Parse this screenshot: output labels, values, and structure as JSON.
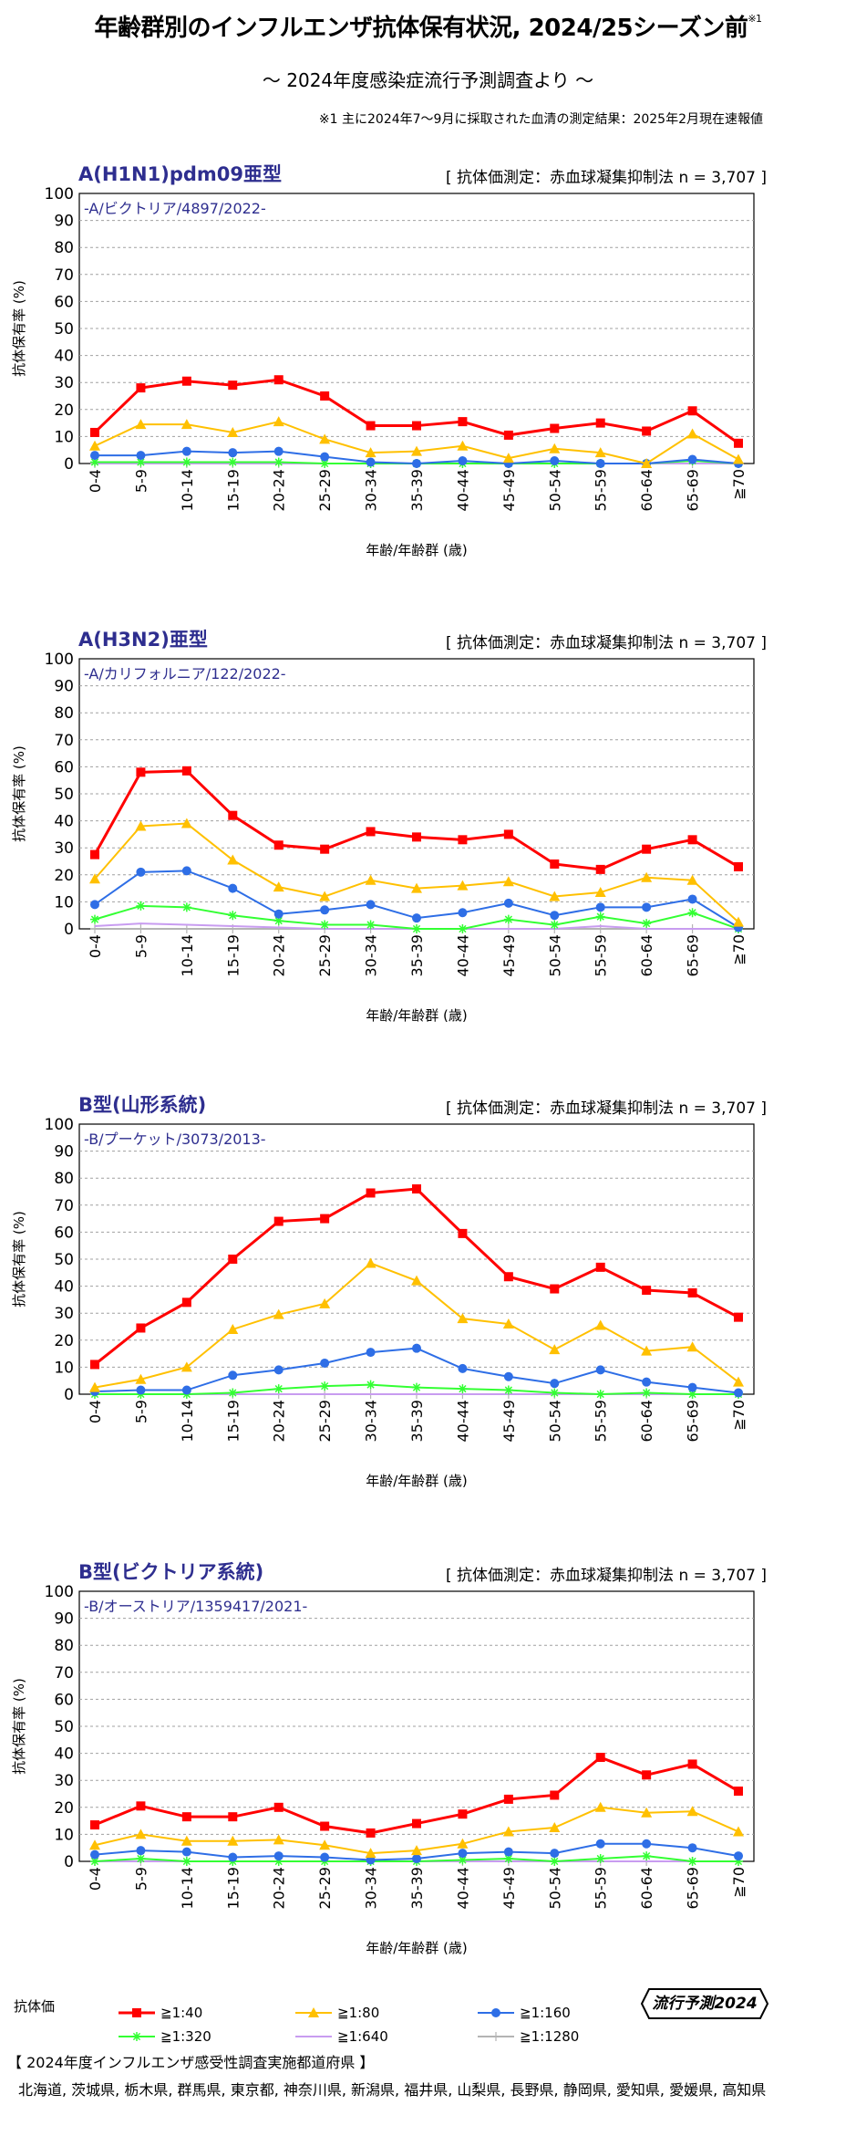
{
  "header": {
    "title": "年齢群別のインフルエンザ抗体保有状況, 2024/25シーズン前",
    "title_note": "※1",
    "subtitle": "～ 2024年度感染症流行予測調査より ～",
    "footnote": "※1  主に2024年7～9月に採取された血清の測定結果：2025年2月現在速報値"
  },
  "series_styles": [
    {
      "name": "≧1:40",
      "color": "#ff0000",
      "marker": "square"
    },
    {
      "name": "≧1:80",
      "color": "#ffc000",
      "marker": "triangle"
    },
    {
      "name": "≧1:160",
      "color": "#2e6ee6",
      "marker": "circle"
    },
    {
      "name": "≧1:320",
      "color": "#33ff33",
      "marker": "star"
    },
    {
      "name": "≧1:640",
      "color": "#c89cf0",
      "marker": "none"
    },
    {
      "name": "≧1:1280",
      "color": "#b4b4b4",
      "marker": "plus"
    }
  ],
  "chart_data": [
    {
      "type": "line",
      "title": "A(H1N1)pdm09亜型",
      "method": "[ 抗体価測定：赤血球凝集抑制法  n = 3,707 ]",
      "strain": "-A/ビクトリア/4897/2022-",
      "xlabel": "年齢/年齢群 (歳)",
      "ylabel": "抗体保有率 (%)",
      "ylim": [
        0,
        100
      ],
      "yticks": [
        0,
        10,
        20,
        30,
        40,
        50,
        60,
        70,
        80,
        90,
        100
      ],
      "categories": [
        "0-4",
        "5-9",
        "10-14",
        "15-19",
        "20-24",
        "25-29",
        "30-34",
        "35-39",
        "40-44",
        "45-49",
        "50-54",
        "55-59",
        "60-64",
        "65-69",
        "≧70"
      ],
      "series": [
        {
          "name": "≧1:40",
          "values": [
            11.5,
            28,
            30.5,
            29,
            31,
            25,
            14,
            14,
            15.5,
            10.5,
            13,
            15,
            12,
            19.5,
            7.5
          ]
        },
        {
          "name": "≧1:80",
          "values": [
            6.5,
            14.5,
            14.5,
            11.5,
            15.5,
            9,
            4,
            4.5,
            6.5,
            2,
            5.5,
            4,
            0,
            11,
            1.5
          ]
        },
        {
          "name": "≧1:160",
          "values": [
            3,
            3,
            4.5,
            4,
            4.5,
            2.5,
            0.5,
            0,
            1,
            0,
            1,
            0,
            0,
            1.5,
            0
          ]
        },
        {
          "name": "≧1:320",
          "values": [
            0.5,
            0.5,
            0.5,
            0.5,
            0.5,
            0,
            0,
            0,
            0,
            0,
            0,
            0,
            0,
            1,
            0
          ]
        },
        {
          "name": "≧1:640",
          "values": [
            0,
            0,
            0,
            0,
            0,
            0,
            0,
            0,
            0,
            0,
            0,
            0,
            0,
            0,
            0
          ]
        },
        {
          "name": "≧1:1280",
          "values": [
            0,
            0,
            0,
            0,
            0,
            0,
            0,
            0,
            0,
            0,
            0,
            0,
            0,
            0,
            0
          ]
        }
      ]
    },
    {
      "type": "line",
      "title": "A(H3N2)亜型",
      "method": "[ 抗体価測定：赤血球凝集抑制法  n = 3,707 ]",
      "strain": "-A/カリフォルニア/122/2022-",
      "xlabel": "年齢/年齢群 (歳)",
      "ylabel": "抗体保有率 (%)",
      "ylim": [
        0,
        100
      ],
      "yticks": [
        0,
        10,
        20,
        30,
        40,
        50,
        60,
        70,
        80,
        90,
        100
      ],
      "categories": [
        "0-4",
        "5-9",
        "10-14",
        "15-19",
        "20-24",
        "25-29",
        "30-34",
        "35-39",
        "40-44",
        "45-49",
        "50-54",
        "55-59",
        "60-64",
        "65-69",
        "≧70"
      ],
      "series": [
        {
          "name": "≧1:40",
          "values": [
            27.5,
            58,
            58.5,
            42,
            31,
            29.5,
            36,
            34,
            33,
            35,
            24,
            22,
            29.5,
            33,
            23
          ]
        },
        {
          "name": "≧1:80",
          "values": [
            18.5,
            38,
            39,
            25.5,
            15.5,
            12,
            18,
            15,
            16,
            17.5,
            12,
            13.5,
            19,
            18,
            2.5
          ]
        },
        {
          "name": "≧1:160",
          "values": [
            9,
            21,
            21.5,
            15,
            5.5,
            7,
            9,
            4,
            6,
            9.5,
            5,
            8,
            8,
            11,
            0.5
          ]
        },
        {
          "name": "≧1:320",
          "values": [
            3.5,
            8.5,
            8,
            5,
            3,
            1.5,
            1.5,
            0,
            0,
            3.5,
            1.5,
            4.5,
            2,
            6,
            0
          ]
        },
        {
          "name": "≧1:640",
          "values": [
            1,
            2,
            1.5,
            1,
            0.5,
            0,
            0,
            0,
            0,
            0,
            0,
            1,
            0,
            0,
            0
          ]
        },
        {
          "name": "≧1:1280",
          "values": [
            0,
            0,
            0,
            0,
            0,
            0,
            0,
            0,
            0,
            0,
            0,
            0,
            0,
            0,
            0
          ]
        }
      ]
    },
    {
      "type": "line",
      "title": "B型(山形系統)",
      "method": "[ 抗体価測定：赤血球凝集抑制法  n = 3,707 ]",
      "strain": "-B/プーケット/3073/2013-",
      "xlabel": "年齢/年齢群 (歳)",
      "ylabel": "抗体保有率 (%)",
      "ylim": [
        0,
        100
      ],
      "yticks": [
        0,
        10,
        20,
        30,
        40,
        50,
        60,
        70,
        80,
        90,
        100
      ],
      "categories": [
        "0-4",
        "5-9",
        "10-14",
        "15-19",
        "20-24",
        "25-29",
        "30-34",
        "35-39",
        "40-44",
        "45-49",
        "50-54",
        "55-59",
        "60-64",
        "65-69",
        "≧70"
      ],
      "series": [
        {
          "name": "≧1:40",
          "values": [
            11,
            24.5,
            34,
            50,
            64,
            65,
            74.5,
            76,
            59.5,
            43.5,
            39,
            47,
            38.5,
            37.5,
            28.5
          ]
        },
        {
          "name": "≧1:80",
          "values": [
            2.5,
            5.5,
            10,
            24,
            29.5,
            33.5,
            48.5,
            42,
            28,
            26,
            16.5,
            25.5,
            16,
            17.5,
            4.5
          ]
        },
        {
          "name": "≧1:160",
          "values": [
            1,
            1.5,
            1.5,
            7,
            9,
            11.5,
            15.5,
            17,
            9.5,
            6.5,
            4,
            9,
            4.5,
            2.5,
            0.5
          ]
        },
        {
          "name": "≧1:320",
          "values": [
            0,
            0,
            0,
            0.5,
            2,
            3,
            3.5,
            2.5,
            2,
            1.5,
            0.5,
            0,
            0.5,
            0,
            0
          ]
        },
        {
          "name": "≧1:640",
          "values": [
            0,
            0,
            0,
            0,
            0,
            0,
            0,
            0,
            0,
            0,
            0,
            0,
            0,
            0,
            0
          ]
        },
        {
          "name": "≧1:1280",
          "values": [
            0,
            0,
            0,
            0,
            0,
            0,
            0,
            0,
            0,
            0,
            0,
            0,
            0,
            0,
            0
          ]
        }
      ]
    },
    {
      "type": "line",
      "title": "B型(ビクトリア系統)",
      "method": "[ 抗体価測定：赤血球凝集抑制法  n = 3,707 ]",
      "strain": "-B/オーストリア/1359417/2021-",
      "xlabel": "年齢/年齢群 (歳)",
      "ylabel": "抗体保有率 (%)",
      "ylim": [
        0,
        100
      ],
      "yticks": [
        0,
        10,
        20,
        30,
        40,
        50,
        60,
        70,
        80,
        90,
        100
      ],
      "categories": [
        "0-4",
        "5-9",
        "10-14",
        "15-19",
        "20-24",
        "25-29",
        "30-34",
        "35-39",
        "40-44",
        "45-49",
        "50-54",
        "55-59",
        "60-64",
        "65-69",
        "≧70"
      ],
      "series": [
        {
          "name": "≧1:40",
          "values": [
            13.5,
            20.5,
            16.5,
            16.5,
            20,
            13,
            10.5,
            14,
            17.5,
            23,
            24.5,
            38.5,
            32,
            36,
            26
          ]
        },
        {
          "name": "≧1:80",
          "values": [
            6,
            10,
            7.5,
            7.5,
            8,
            6,
            3,
            4,
            6.5,
            11,
            12.5,
            20,
            18,
            18.5,
            11
          ]
        },
        {
          "name": "≧1:160",
          "values": [
            2.5,
            4,
            3.5,
            1.5,
            2,
            1.5,
            0.5,
            1,
            3,
            3.5,
            3,
            6.5,
            6.5,
            5,
            2
          ]
        },
        {
          "name": "≧1:320",
          "values": [
            0,
            1,
            0,
            0,
            0,
            0,
            0,
            0,
            0.5,
            1,
            0,
            1,
            2,
            0,
            0
          ]
        },
        {
          "name": "≧1:640",
          "values": [
            0,
            0,
            0,
            0,
            0,
            0,
            0,
            0,
            0,
            0,
            0,
            0,
            0,
            0,
            0
          ]
        },
        {
          "name": "≧1:1280",
          "values": [
            0,
            0,
            0,
            0,
            0,
            0,
            0,
            0,
            0,
            0,
            0,
            0,
            0,
            0,
            0
          ]
        }
      ]
    }
  ],
  "legend": {
    "title": "抗体価",
    "items": [
      "≧1:40",
      "≧1:80",
      "≧1:160",
      "≧1:320",
      "≧1:640",
      "≧1:1280"
    ]
  },
  "badge": {
    "text": "流行予測2024"
  },
  "prefectures": {
    "title": "【 2024年度インフルエンザ感受性調査実施都道府県 】",
    "list": "北海道,  茨城県,  栃木県,  群馬県,  東京都,  神奈川県,  新潟県,  福井県,  山梨県,  長野県,  静岡県,  愛知県,  愛媛県,  高知県"
  }
}
